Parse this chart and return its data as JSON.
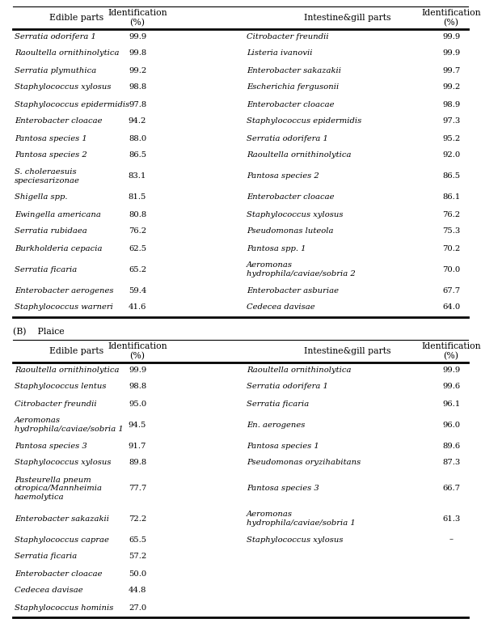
{
  "section_B_label": "(B)    Plaice",
  "col_headers": [
    "Edible parts",
    "Identification\n(%)",
    "Intestine&gill parts",
    "Identification\n(%)"
  ],
  "tableA_edible": [
    "Serratia odorifera 1",
    "Raoultella ornithinolytica",
    "Serratia plymuthica",
    "Staphylococcus xylosus",
    "Staphylococcus epidermidis",
    "Enterobacter cloacae",
    "Pantosa species 1",
    "Pantosa species 2",
    "S. choleraesuis\nspeciesarizonae",
    "Shigella spp.",
    "Ewingella americana",
    "Serratia rubidaea",
    "Burkholderia cepacia",
    "Serratia ficaria",
    "Enterobacter aerogenes",
    "Staphylococcus warneri"
  ],
  "tableA_edible_id": [
    "99.9",
    "99.8",
    "99.2",
    "98.8",
    "97.8",
    "94.2",
    "88.0",
    "86.5",
    "83.1",
    "81.5",
    "80.8",
    "76.2",
    "62.5",
    "65.2",
    "59.4",
    "41.6"
  ],
  "tableA_intestine": [
    "Citrobacter freundii",
    "Listeria ivanovii",
    "Enterobacter sakazakii",
    "Escherichia fergusonii",
    "Enterobacter cloacae",
    "Staphylococcus epidermidis",
    "Serratia odorifera 1",
    "Raoultella ornithinolytica",
    "Pantosa species 2",
    "Enterobacter cloacae",
    "Staphylococcus xylosus",
    "Pseudomonas luteola",
    "Pantosa spp. 1",
    "Aeromonas\nhydrophila/caviae/sobria 2",
    "Enterobacter asburiae",
    "Cedecea davisae"
  ],
  "tableA_intestine_id": [
    "99.9",
    "99.9",
    "99.7",
    "99.2",
    "98.9",
    "97.3",
    "95.2",
    "92.0",
    "86.5",
    "86.1",
    "76.2",
    "75.3",
    "70.2",
    "70.0",
    "67.7",
    "64.0"
  ],
  "tableB_edible": [
    "Raoultella ornithinolytica",
    "Staphylococcus lentus",
    "Citrobacter freundii",
    "Aeromonas\nhydrophila/caviae/sobria 1",
    "Pantosa species 3",
    "Staphylococcus xylosus",
    "Pasteurella pneum\notropica/Mannheimia\nhaemolytica",
    "Enterobacter sakazakii",
    "Staphylococcus caprae",
    "Serratia ficaria",
    "Enterobacter cloacae",
    "Cedecea davisae",
    "Staphylococcus hominis"
  ],
  "tableB_edible_id": [
    "99.9",
    "98.8",
    "95.0",
    "94.5",
    "91.7",
    "89.8",
    "77.7",
    "72.2",
    "65.5",
    "57.2",
    "50.0",
    "44.8",
    "27.0"
  ],
  "tableB_intestine": [
    "Raoultella ornithinolytica",
    "Serratia odorifera 1",
    "Serratia ficaria",
    "En. aerogenes",
    "Pantosa species 1",
    "Pseudomonas oryzihabitans",
    "Pantosa species 3",
    "Aeromonas\nhydrophila/caviae/sobria 1",
    "Staphylococcus xylosus",
    "",
    "",
    "",
    ""
  ],
  "tableB_intestine_id": [
    "99.9",
    "99.6",
    "96.1",
    "96.0",
    "89.6",
    "87.3",
    "66.7",
    "61.3",
    "–",
    "",
    "",
    "",
    ""
  ],
  "font_size": 7.2,
  "header_font_size": 7.8,
  "bg_color": "white",
  "line_color": "black",
  "text_color": "black"
}
